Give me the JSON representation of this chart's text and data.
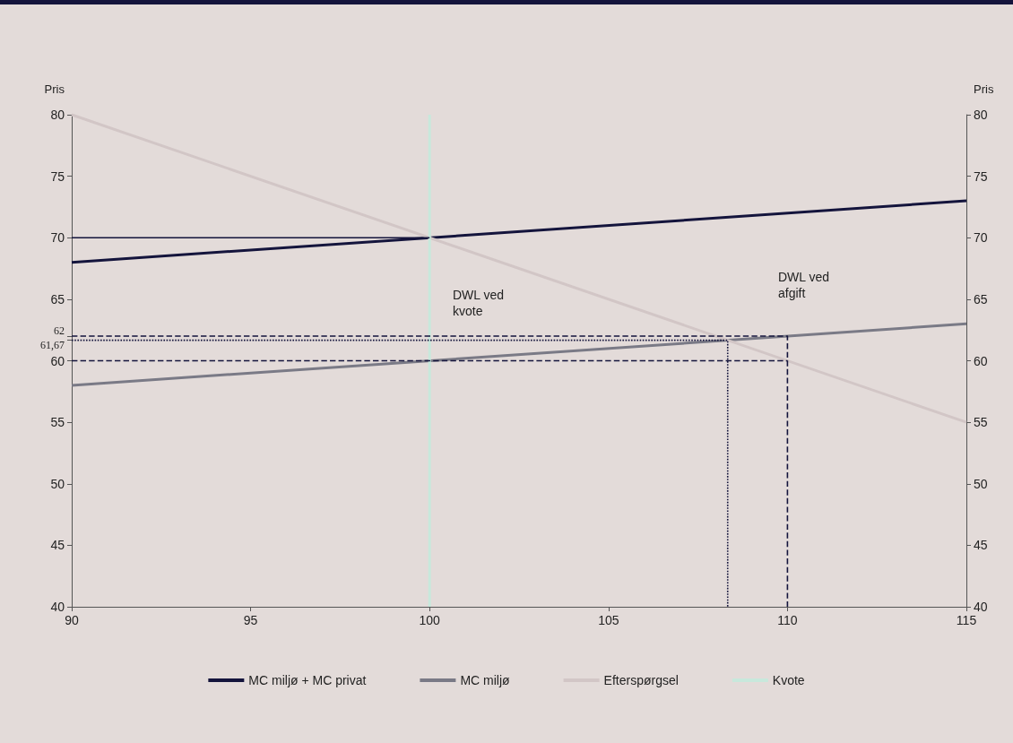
{
  "chart_data": {
    "type": "line",
    "ylabel": "Pris",
    "y2label": "Pris",
    "xlim": [
      90,
      115
    ],
    "xticks": [
      90,
      95,
      100,
      105,
      110,
      115
    ],
    "ylim": [
      40,
      80
    ],
    "yticks": [
      40,
      45,
      50,
      55,
      60,
      {
        "value": 61.67,
        "label": "61,67"
      },
      62,
      65,
      70,
      75,
      80
    ],
    "y2lim": [
      40,
      80
    ],
    "y2ticks": [
      40,
      45,
      50,
      55,
      60,
      65,
      70,
      75,
      80
    ],
    "grid": false,
    "legend": "bottom",
    "marker": "none",
    "series": [
      {
        "name": "MC miljø + MC privat",
        "color": "#14143c",
        "x": [
          90,
          115
        ],
        "values": [
          68,
          73
        ]
      },
      {
        "name": "MC miljø",
        "color": "#7a7a86",
        "x": [
          90,
          115
        ],
        "values": [
          58,
          63
        ]
      },
      {
        "name": "Efterspørgsel",
        "color": "#d2c6c6",
        "x": [
          90,
          115
        ],
        "values": [
          80,
          55
        ]
      },
      {
        "name": "Kvote",
        "color": "#c8e8dc",
        "x": [
          100,
          100
        ],
        "values": [
          40,
          80
        ]
      },
      {
        "color": "#14143c",
        "x": [
          90,
          100
        ],
        "values": [
          70,
          70
        ]
      },
      {
        "color": "#14143c",
        "line_style": "dashed",
        "x": [
          90,
          110,
          110
        ],
        "values": [
          62,
          62,
          40
        ]
      },
      {
        "color": "#14143c",
        "line_style": "dashed",
        "x": [
          90,
          110
        ],
        "values": [
          60,
          60
        ]
      },
      {
        "color": "#14143c",
        "line_style": "dotted",
        "x": [
          90,
          108.33,
          108.33
        ],
        "values": [
          61.67,
          61.67,
          40
        ]
      }
    ],
    "annotations": [
      "DWL ved\nkvote",
      "DWL ved\nafgift"
    ]
  }
}
